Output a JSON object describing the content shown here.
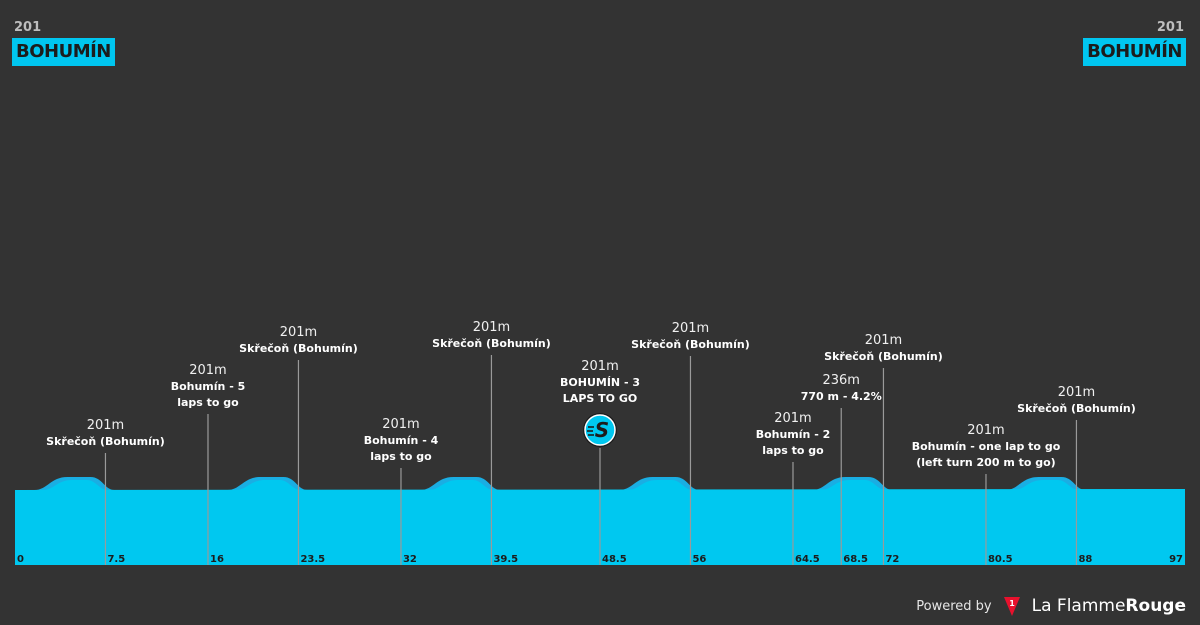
{
  "header": {
    "start_altitude": "201",
    "start_name": "BOHUMÍN",
    "finish_altitude": "201",
    "finish_name": "BOHUMÍN"
  },
  "chart_data": {
    "type": "area",
    "xlim": [
      0,
      97
    ],
    "x_ticks": [
      "0",
      "7.5",
      "16",
      "23.5",
      "32",
      "39.5",
      "48.5",
      "56",
      "64.5",
      "68.5",
      "72",
      "80.5",
      "88",
      "97"
    ],
    "x_tick_values": [
      0,
      7.5,
      16,
      23.5,
      32,
      39.5,
      48.5,
      56,
      64.5,
      68.5,
      72,
      80.5,
      88,
      97
    ],
    "colors": {
      "fill": "#00c8f0",
      "hill": "#1aaee3",
      "background": "#333333",
      "marker": "#9a9a9a"
    },
    "annotations": [
      {
        "km": 7.5,
        "alt": "201m",
        "lines": [
          "Skřečoň (Bohumín)"
        ]
      },
      {
        "km": 16,
        "alt": "201m",
        "lines": [
          "Bohumín - 5",
          "laps to go"
        ]
      },
      {
        "km": 23.5,
        "alt": "201m",
        "lines": [
          "Skřečoň (Bohumín)"
        ]
      },
      {
        "km": 32,
        "alt": "201m",
        "lines": [
          "Bohumín - 4",
          "laps to go"
        ]
      },
      {
        "km": 39.5,
        "alt": "201m",
        "lines": [
          "Skřečoň (Bohumín)"
        ]
      },
      {
        "km": 48.5,
        "alt": "201m",
        "lines": [
          "BOHUMÍN - 3",
          "LAPS TO GO"
        ],
        "icon": "sprint-icon"
      },
      {
        "km": 56,
        "alt": "201m",
        "lines": [
          "Skřečoň (Bohumín)"
        ]
      },
      {
        "km": 64.5,
        "alt": "201m",
        "lines": [
          "Bohumín - 2",
          "laps to go"
        ]
      },
      {
        "km": 68.5,
        "alt": "236m",
        "lines": [
          "770 m - 4.2%"
        ]
      },
      {
        "km": 72,
        "alt": "201m",
        "lines": [
          "Skřečoň (Bohumín)"
        ]
      },
      {
        "km": 80.5,
        "alt": "201m",
        "lines": [
          "Bohumín - one lap to go",
          "(left turn 200 m to go)"
        ]
      },
      {
        "km": 88,
        "alt": "201m",
        "lines": [
          "Skřečoň (Bohumín)"
        ]
      }
    ]
  },
  "footer": {
    "powered_by": "Powered by",
    "brand_light": "La Flamme",
    "brand_bold": "Rouge",
    "logo_icon": "flame-rouge-logo-icon"
  }
}
